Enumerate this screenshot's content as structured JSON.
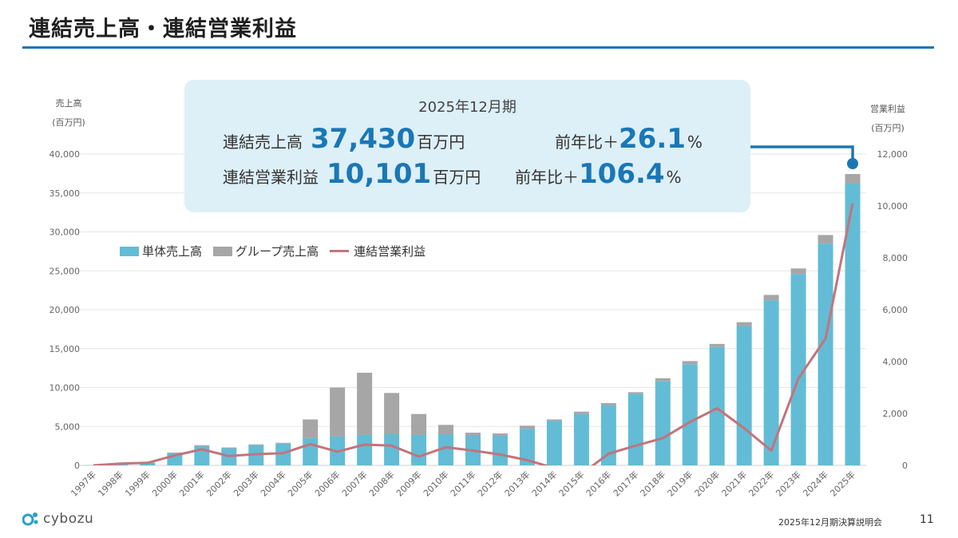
{
  "slide": {
    "title": "連結売上高・連結営業利益",
    "footer_event": "2025年12月期決算説明会",
    "page_number": "11",
    "logo_text": "cybozu"
  },
  "callout": {
    "period": "2025年12月期",
    "sales_label": "連結売上高",
    "sales_value": "37,430",
    "sales_unit": "百万円",
    "sales_yoy_label": "前年比＋",
    "sales_yoy_value": "26.1",
    "sales_yoy_unit": "%",
    "op_label": "連結営業利益",
    "op_value": "10,101",
    "op_unit": "百万円",
    "op_yoy_label": "前年比＋",
    "op_yoy_value": "106.4",
    "op_yoy_unit": "%"
  },
  "colors": {
    "standalone": "#62bcd6",
    "group": "#a6a6a6",
    "operating_profit": "#c4737b",
    "accent": "#1a77b5"
  },
  "chart_data": {
    "type": "bar",
    "stacked": true,
    "categories": [
      "1997年",
      "1998年",
      "1999年",
      "2000年",
      "2001年",
      "2002年",
      "2003年",
      "2004年",
      "2005年",
      "2006年",
      "2007年",
      "2008年",
      "2009年",
      "2010年",
      "2011年",
      "2012年",
      "2013年",
      "2014年",
      "2015年",
      "2016年",
      "2017年",
      "2018年",
      "2019年",
      "2020年",
      "2021年",
      "2022年",
      "2023年",
      "2024年",
      "2025年"
    ],
    "left_axis_title": [
      "売上高",
      "(百万円)"
    ],
    "right_axis_title": [
      "営業利益",
      "(百万円)"
    ],
    "ylim_left": [
      0,
      40000
    ],
    "ylim_right": [
      0,
      12000
    ],
    "yticks_left": [
      "0",
      "5,000",
      "10,000",
      "15,000",
      "20,000",
      "25,000",
      "30,000",
      "35,000",
      "40,000"
    ],
    "yticks_right": [
      "0",
      "2,000",
      "4,000",
      "6,000",
      "8,000",
      "10,000",
      "12,000"
    ],
    "legend": [
      "単体売上高",
      "グループ売上高",
      "連結営業利益"
    ],
    "legend_position": "top-left",
    "grid": true,
    "series": [
      {
        "name": "単体売上高",
        "type": "bar",
        "axis": "left",
        "values": [
          30,
          200,
          350,
          1550,
          2500,
          2200,
          2600,
          2800,
          3500,
          3700,
          3900,
          4000,
          3900,
          4000,
          3900,
          3800,
          4700,
          5700,
          6600,
          7700,
          9200,
          10800,
          13000,
          15200,
          17900,
          21200,
          24600,
          28500,
          36200
        ]
      },
      {
        "name": "グループ売上高",
        "type": "bar",
        "axis": "left",
        "values": [
          0,
          0,
          0,
          100,
          100,
          100,
          100,
          100,
          2400,
          6300,
          8000,
          5300,
          2700,
          1200,
          300,
          300,
          400,
          200,
          300,
          300,
          200,
          400,
          400,
          400,
          500,
          700,
          700,
          1100,
          1230
        ]
      },
      {
        "name": "連結営業利益",
        "type": "line",
        "axis": "right",
        "values": [
          0,
          70,
          100,
          380,
          620,
          360,
          430,
          470,
          820,
          530,
          800,
          760,
          340,
          700,
          570,
          420,
          200,
          -100,
          -330,
          450,
          760,
          1050,
          1670,
          2200,
          1430,
          570,
          3350,
          4890,
          10101
        ]
      }
    ]
  }
}
